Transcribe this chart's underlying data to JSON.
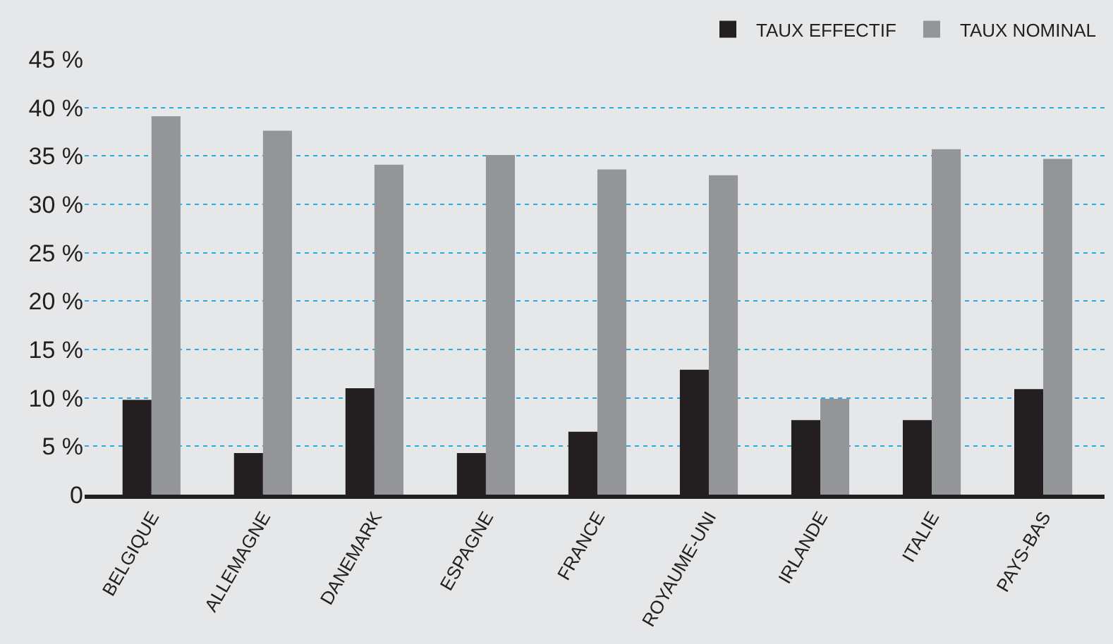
{
  "chart_data": {
    "type": "bar",
    "categories": [
      "BELGIQUE",
      "ALLEMAGNE",
      "DANEMARK",
      "ESPAGNE",
      "FRANCE",
      "ROYAUME-UNI",
      "IRLANDE",
      "ITALIE",
      "PAYS-BAS"
    ],
    "series": [
      {
        "name": "TAUX EFFECTIF",
        "color": "#231f20",
        "values": [
          9.8,
          4.3,
          11.0,
          4.3,
          6.5,
          12.9,
          7.7,
          7.7,
          10.9
        ]
      },
      {
        "name": "TAUX NOMINAL",
        "color": "#939598",
        "values": [
          39.1,
          37.6,
          34.1,
          35.1,
          33.6,
          33.0,
          9.9,
          35.7,
          34.7
        ]
      }
    ],
    "ylim": [
      0,
      45
    ],
    "yticks": [
      "0",
      {
        "value": 5,
        "label": "5 %"
      },
      {
        "value": 10,
        "label": "10 %"
      },
      {
        "value": 15,
        "label": "15 %"
      },
      {
        "value": 20,
        "label": "20 %"
      },
      {
        "value": 25,
        "label": "25 %"
      },
      {
        "value": 30,
        "label": "30 %"
      },
      {
        "value": 35,
        "label": "35 %"
      },
      {
        "value": 40,
        "label": "40 %"
      },
      {
        "value": 45,
        "label": "45 %"
      }
    ],
    "grid": "y",
    "legend": "top right"
  }
}
